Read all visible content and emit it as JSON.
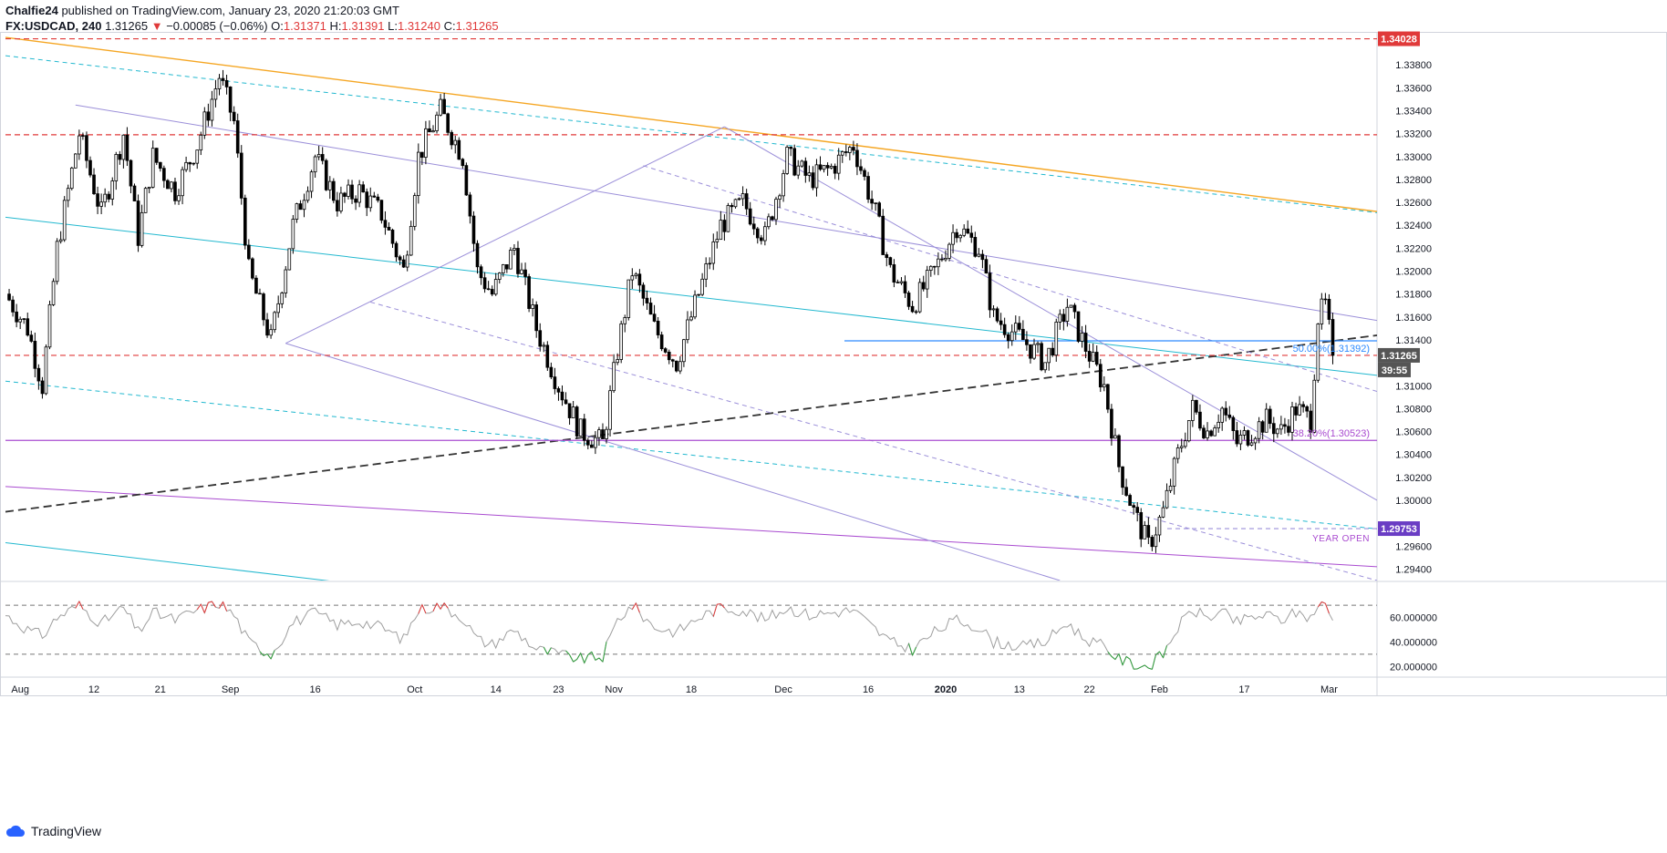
{
  "header": {
    "author": "Chalfie24",
    "published_text": "published on TradingView.com, January 23, 2020 21:20:03 GMT",
    "symbol": "FX:USDCAD, 240",
    "last": "1.31265",
    "change_arrow": "▼",
    "change": "−0.00085 (−0.06%)",
    "o_label": "O:",
    "o_value": "1.31371",
    "h_label": "H:",
    "h_value": "1.31391",
    "l_label": "L:",
    "l_value": "1.31240",
    "c_label": "C:",
    "c_value": "1.31265"
  },
  "footer": {
    "brand": "TradingView"
  },
  "colors": {
    "red": "#e03a3a",
    "orange": "#f5a623",
    "cyan": "#22b8cf",
    "lavender": "#9b8fd9",
    "purple": "#a94bd0",
    "blue": "#2e8bff",
    "dark_dashed": "#333333",
    "grid_gray": "#9e9e9e"
  },
  "chart_data": [
    {
      "type": "candlestick",
      "title": "FX:USDCAD, 240",
      "x_tick_labels": [
        "Aug",
        "12",
        "21",
        "Sep",
        "16",
        "Oct",
        "14",
        "23",
        "Nov",
        "18",
        "Dec",
        "16",
        "2020",
        "13",
        "22",
        "Feb",
        "17",
        "Mar"
      ],
      "y_tick_labels": [
        "1.33800",
        "1.33600",
        "1.33400",
        "1.33200",
        "1.33000",
        "1.32800",
        "1.32600",
        "1.32400",
        "1.32200",
        "1.32000",
        "1.31800",
        "1.31600",
        "1.31400",
        "1.31000",
        "1.30800",
        "1.30600",
        "1.30400",
        "1.30200",
        "1.30000",
        "1.29600",
        "1.29400"
      ],
      "ylim": [
        1.293,
        1.3408
      ],
      "price_path": [
        [
          0,
          1.318
        ],
        [
          6,
          1.315
        ],
        [
          10,
          1.31
        ],
        [
          14,
          1.322
        ],
        [
          20,
          1.332
        ],
        [
          26,
          1.325
        ],
        [
          32,
          1.332
        ],
        [
          36,
          1.323
        ],
        [
          40,
          1.33
        ],
        [
          46,
          1.327
        ],
        [
          52,
          1.331
        ],
        [
          58,
          1.337
        ],
        [
          62,
          1.333
        ],
        [
          66,
          1.32
        ],
        [
          72,
          1.314
        ],
        [
          78,
          1.324
        ],
        [
          84,
          1.33
        ],
        [
          90,
          1.326
        ],
        [
          96,
          1.327
        ],
        [
          102,
          1.325
        ],
        [
          108,
          1.32
        ],
        [
          112,
          1.33
        ],
        [
          118,
          1.334
        ],
        [
          124,
          1.33
        ],
        [
          128,
          1.32
        ],
        [
          132,
          1.318
        ],
        [
          138,
          1.322
        ],
        [
          144,
          1.315
        ],
        [
          150,
          1.31
        ],
        [
          156,
          1.306
        ],
        [
          162,
          1.305
        ],
        [
          166,
          1.313
        ],
        [
          170,
          1.32
        ],
        [
          176,
          1.315
        ],
        [
          182,
          1.312
        ],
        [
          188,
          1.318
        ],
        [
          194,
          1.324
        ],
        [
          200,
          1.326
        ],
        [
          206,
          1.323
        ],
        [
          212,
          1.33
        ],
        [
          218,
          1.328
        ],
        [
          224,
          1.329
        ],
        [
          230,
          1.331
        ],
        [
          236,
          1.325
        ],
        [
          240,
          1.32
        ],
        [
          246,
          1.317
        ],
        [
          252,
          1.32
        ],
        [
          258,
          1.324
        ],
        [
          264,
          1.322
        ],
        [
          268,
          1.316
        ],
        [
          272,
          1.315
        ],
        [
          276,
          1.314
        ],
        [
          282,
          1.312
        ],
        [
          288,
          1.317
        ],
        [
          292,
          1.314
        ],
        [
          298,
          1.31
        ],
        [
          302,
          1.303
        ],
        [
          306,
          1.299
        ],
        [
          310,
          1.296
        ],
        [
          314,
          1.299
        ],
        [
          318,
          1.304
        ],
        [
          322,
          1.308
        ],
        [
          326,
          1.306
        ],
        [
          330,
          1.308
        ],
        [
          334,
          1.305
        ],
        [
          338,
          1.306
        ],
        [
          342,
          1.307
        ],
        [
          346,
          1.306
        ],
        [
          350,
          1.308
        ],
        [
          354,
          1.307
        ],
        [
          356,
          1.316
        ],
        [
          358,
          1.317
        ],
        [
          360,
          1.3127
        ]
      ],
      "max_candle_index": 360,
      "last_price": 1.31265,
      "levels": [
        {
          "name": "top-red-line",
          "price": 1.34028,
          "style": "dashed",
          "color": "red",
          "label": "1.34028"
        },
        {
          "name": "resistance-red-line",
          "price": 1.3319,
          "style": "dashed",
          "color": "red"
        },
        {
          "name": "last-price-red-line",
          "price": 1.31265,
          "style": "dashed",
          "color": "red",
          "label": "1.31265"
        },
        {
          "name": "fib-50-line",
          "price": 1.31392,
          "style": "solid",
          "color": "blue",
          "label": "50.00%(1.31392)"
        },
        {
          "name": "fib-382-line",
          "price": 1.30523,
          "style": "solid",
          "color": "purple",
          "label": "38.20%(1.30523)"
        },
        {
          "name": "year-open-line",
          "price": 1.29753,
          "style": "dashed",
          "color": "lavender",
          "label": "1.29753",
          "text": "YEAR OPEN"
        }
      ],
      "countdown": "39:55",
      "trendlines": [
        {
          "name": "orange-trendline",
          "color": "orange",
          "style": "solid",
          "from": [
            0,
            1.3404
          ],
          "to": [
            372,
            1.3252
          ]
        },
        {
          "name": "cyan-dashed-trendline-upper",
          "color": "cyan",
          "style": "dashed",
          "from": [
            0,
            1.3388
          ],
          "to": [
            372,
            1.3251
          ]
        },
        {
          "name": "cyan-trendline-mid",
          "color": "cyan",
          "style": "solid",
          "from": [
            0,
            1.3247
          ],
          "to": [
            372,
            1.3109
          ]
        },
        {
          "name": "cyan-dashed-trendline-lower",
          "color": "cyan",
          "style": "dashed",
          "from": [
            0,
            1.3104
          ],
          "to": [
            372,
            1.2975
          ]
        },
        {
          "name": "cyan-trendline-bottom",
          "color": "cyan",
          "style": "solid",
          "from": [
            0,
            1.2963
          ],
          "to": [
            100,
            1.2925
          ]
        },
        {
          "name": "purple-trendline",
          "color": "purple",
          "style": "solid",
          "from": [
            0,
            1.3012
          ],
          "to": [
            372,
            1.2942
          ]
        },
        {
          "name": "black-dashed-support",
          "color": "dark_dashed",
          "style": "dashed",
          "from": [
            0,
            1.299
          ],
          "to": [
            372,
            1.3144
          ]
        },
        {
          "name": "channel-upper",
          "color": "lavender",
          "style": "solid",
          "from": [
            19,
            1.3345
          ],
          "to": [
            372,
            1.3157
          ]
        },
        {
          "name": "channel-mid-dashed",
          "color": "lavender",
          "style": "dashed",
          "from": [
            99,
            1.3173
          ],
          "to": [
            372,
            1.293
          ]
        },
        {
          "name": "channel-lower",
          "color": "lavender",
          "style": "solid",
          "from": [
            76,
            1.3137
          ],
          "to": [
            286,
            1.293
          ]
        },
        {
          "name": "channel-upper-2",
          "color": "lavender",
          "style": "solid",
          "from": [
            195,
            1.3326
          ],
          "to": [
            372,
            1.3
          ]
        },
        {
          "name": "channel-mid-2-dashed",
          "color": "lavender",
          "style": "dashed",
          "from": [
            173,
            1.3292
          ],
          "to": [
            372,
            1.3095
          ]
        },
        {
          "name": "rising-channel-line",
          "color": "lavender",
          "style": "solid",
          "from": [
            76,
            1.3137
          ],
          "to": [
            195,
            1.3326
          ]
        }
      ],
      "oscillator": {
        "y_tick_labels": [
          "60.000000",
          "40.000000",
          "20.000000"
        ],
        "ylim": [
          12,
          88
        ],
        "upper_band": 70,
        "lower_band": 30,
        "path": [
          [
            0,
            62
          ],
          [
            6,
            50
          ],
          [
            10,
            45
          ],
          [
            14,
            60
          ],
          [
            20,
            70
          ],
          [
            26,
            55
          ],
          [
            32,
            68
          ],
          [
            36,
            48
          ],
          [
            40,
            64
          ],
          [
            46,
            58
          ],
          [
            52,
            66
          ],
          [
            58,
            72
          ],
          [
            62,
            62
          ],
          [
            66,
            40
          ],
          [
            72,
            30
          ],
          [
            78,
            56
          ],
          [
            84,
            64
          ],
          [
            90,
            54
          ],
          [
            96,
            57
          ],
          [
            102,
            52
          ],
          [
            108,
            42
          ],
          [
            112,
            66
          ],
          [
            118,
            70
          ],
          [
            124,
            60
          ],
          [
            128,
            42
          ],
          [
            132,
            38
          ],
          [
            138,
            50
          ],
          [
            144,
            34
          ],
          [
            150,
            30
          ],
          [
            156,
            26
          ],
          [
            162,
            28
          ],
          [
            166,
            58
          ],
          [
            170,
            70
          ],
          [
            176,
            52
          ],
          [
            182,
            48
          ],
          [
            188,
            60
          ],
          [
            194,
            68
          ],
          [
            200,
            66
          ],
          [
            206,
            58
          ],
          [
            212,
            68
          ],
          [
            218,
            62
          ],
          [
            224,
            64
          ],
          [
            230,
            66
          ],
          [
            236,
            50
          ],
          [
            240,
            40
          ],
          [
            246,
            34
          ],
          [
            252,
            48
          ],
          [
            258,
            58
          ],
          [
            264,
            52
          ],
          [
            268,
            40
          ],
          [
            272,
            38
          ],
          [
            276,
            36
          ],
          [
            282,
            40
          ],
          [
            288,
            56
          ],
          [
            292,
            44
          ],
          [
            298,
            36
          ],
          [
            302,
            26
          ],
          [
            306,
            22
          ],
          [
            310,
            20
          ],
          [
            314,
            30
          ],
          [
            318,
            52
          ],
          [
            322,
            66
          ],
          [
            326,
            60
          ],
          [
            330,
            64
          ],
          [
            334,
            56
          ],
          [
            338,
            60
          ],
          [
            342,
            62
          ],
          [
            346,
            58
          ],
          [
            350,
            64
          ],
          [
            354,
            60
          ],
          [
            356,
            70
          ],
          [
            358,
            70
          ],
          [
            360,
            58
          ]
        ]
      }
    }
  ]
}
